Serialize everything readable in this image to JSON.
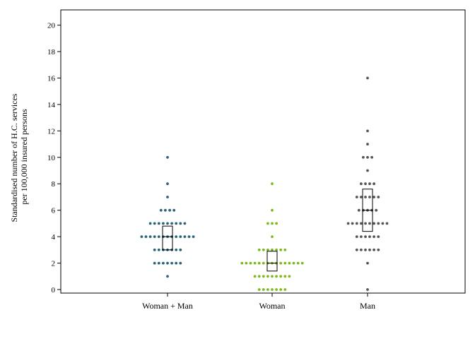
{
  "chart_data": {
    "type": "scatter",
    "subtype": "beeswarm dot plot with median/quartile box",
    "ylabel": [
      "Standardised number of H.C. services",
      "per 100,000 insured persons"
    ],
    "ylim": [
      0,
      20
    ],
    "yticks": [
      0,
      2,
      4,
      6,
      8,
      10,
      12,
      14,
      16,
      18,
      20
    ],
    "categories": [
      "Woman + Man",
      "Woman",
      "Man"
    ],
    "grid": false,
    "series": [
      {
        "name": "Woman + Man",
        "color": "#2a6478",
        "values": [
          1,
          2,
          2,
          2,
          2,
          2,
          2,
          2,
          3,
          3,
          3,
          3,
          3,
          3,
          3,
          4,
          4,
          4,
          4,
          4,
          4,
          4,
          4,
          4,
          4,
          4,
          4,
          4,
          5,
          5,
          5,
          5,
          5,
          5,
          5,
          5,
          5,
          6,
          6,
          6,
          6,
          7,
          8,
          10
        ],
        "box": {
          "q1": 3.0,
          "median": 4.0,
          "q3": 4.8
        }
      },
      {
        "name": "Woman",
        "color": "#7dba1e",
        "values": [
          0,
          0,
          0,
          0,
          0,
          0,
          0,
          1,
          1,
          1,
          1,
          1,
          1,
          1,
          1,
          1,
          2,
          2,
          2,
          2,
          2,
          2,
          2,
          2,
          2,
          2,
          2,
          2,
          2,
          2,
          2,
          3,
          3,
          3,
          3,
          3,
          3,
          3,
          4,
          5,
          5,
          5,
          6,
          8
        ],
        "box": {
          "q1": 1.4,
          "median": 2.0,
          "q3": 2.9
        }
      },
      {
        "name": "Man",
        "color": "#555555",
        "values": [
          0,
          2,
          3,
          3,
          3,
          3,
          3,
          3,
          4,
          4,
          4,
          4,
          4,
          4,
          5,
          5,
          5,
          5,
          5,
          5,
          5,
          5,
          5,
          5,
          6,
          6,
          6,
          6,
          6,
          7,
          7,
          7,
          7,
          7,
          7,
          8,
          8,
          8,
          8,
          9,
          10,
          10,
          10,
          11,
          12,
          16
        ],
        "box": {
          "q1": 4.4,
          "median": 6.0,
          "q3": 7.6
        }
      }
    ]
  }
}
